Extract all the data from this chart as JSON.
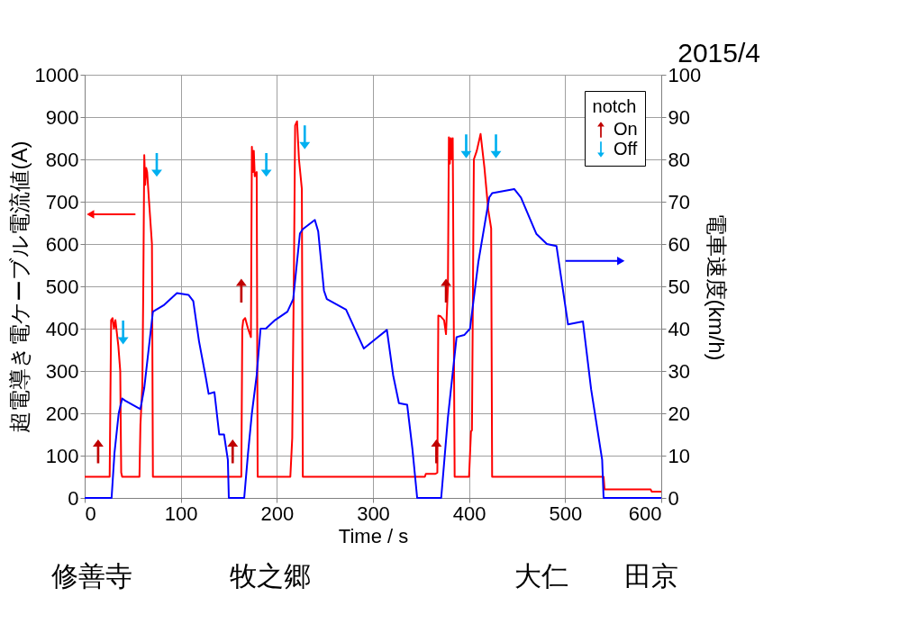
{
  "chart_data": {
    "type": "line",
    "xlabel": "Time / s",
    "ylabel": "超電導き電ケーブル電流値(A)",
    "y2label": "電車速度(km/h)",
    "legend_title": "notch",
    "xlim": [
      0,
      600
    ],
    "xticks": [
      0,
      100,
      200,
      300,
      400,
      500,
      600
    ],
    "ylim": [
      0,
      1000
    ],
    "yticks": [
      0,
      100,
      200,
      300,
      400,
      500,
      600,
      700,
      800,
      900,
      1000
    ],
    "y2lim": [
      0,
      100
    ],
    "y2ticks": [
      0,
      10,
      20,
      30,
      40,
      50,
      60,
      70,
      80,
      90,
      100
    ],
    "grid": true,
    "legend": "top right",
    "line_style": "solid",
    "series": [
      {
        "color": "#ff0000",
        "x": [
          0,
          26,
          27.5,
          29,
          30.5,
          32,
          35,
          37,
          38,
          39,
          57,
          58,
          60,
          61,
          62,
          63,
          64,
          65,
          67,
          70,
          71,
          72,
          161,
          163,
          164,
          165,
          167,
          170,
          173,
          174,
          175,
          176,
          177,
          179,
          180,
          184,
          214,
          216,
          218,
          219,
          221,
          223,
          226,
          227,
          228,
          354,
          355,
          365,
          367,
          368,
          370,
          374,
          376,
          378,
          379,
          380,
          381,
          382,
          383,
          385,
          388,
          400,
          402,
          403,
          405,
          408,
          412,
          416,
          420,
          423,
          424,
          540,
          541,
          589,
          590,
          600
        ],
        "values": [
          50,
          50,
          420,
          425,
          400,
          420,
          360,
          300,
          60,
          50,
          50,
          172,
          265,
          500,
          810,
          740,
          780,
          770,
          700,
          600,
          50,
          50,
          50,
          50,
          400,
          420,
          425,
          400,
          380,
          830,
          770,
          820,
          760,
          770,
          50,
          50,
          50,
          142,
          600,
          880,
          890,
          800,
          730,
          50,
          50,
          50,
          57,
          57,
          60,
          431,
          430,
          420,
          387,
          500,
          852,
          790,
          850,
          800,
          850,
          50,
          50,
          50,
          157,
          160,
          800,
          820,
          860,
          780,
          680,
          637,
          50,
          50,
          20,
          20,
          15,
          15
        ]
      },
      {
        "color": "#0000ff",
        "axis": "y2",
        "x": [
          0,
          28,
          31,
          35.4,
          39,
          42,
          50,
          58,
          62,
          67,
          71,
          82,
          96,
          108,
          113,
          119,
          126,
          129,
          135,
          140,
          145,
          149,
          150,
          166,
          170,
          174,
          179,
          183,
          188.5,
          198,
          211,
          217,
          224,
          227,
          239.5,
          243,
          249,
          252,
          272,
          283,
          290.5,
          305,
          314.5,
          321,
          327,
          335.6,
          341,
          346,
          371,
          378,
          387,
          395,
          401,
          409.7,
          421,
          424,
          447,
          454,
          470,
          481,
          491,
          503,
          518.5,
          527,
          538.5,
          540,
          600
        ],
        "values": [
          0,
          0,
          10.6,
          20,
          23.5,
          23,
          22,
          21,
          26,
          36,
          44,
          45.5,
          48.4,
          48,
          46.5,
          37,
          28.5,
          24.6,
          25,
          15,
          15,
          9,
          0,
          0,
          10.6,
          20,
          29,
          40,
          40,
          42,
          44,
          47,
          62.5,
          63.5,
          65.7,
          63,
          49,
          47,
          44.5,
          39,
          35.3,
          38,
          39.7,
          29,
          22.4,
          22,
          11.7,
          0,
          0,
          19,
          38,
          38.5,
          40,
          55.8,
          71,
          72,
          73,
          71,
          62.4,
          60,
          59.5,
          41,
          41.7,
          25.7,
          9,
          0,
          0
        ]
      },
      {
        "type": "scatter",
        "name": "On",
        "color": "#c00000",
        "x": [
          14,
          154,
          163,
          366,
          376
        ],
        "values": [
          110,
          110,
          490,
          110,
          490
        ]
      },
      {
        "type": "scatter",
        "name": "Off",
        "color": "#00b0f0",
        "x": [
          40,
          75,
          189,
          229,
          397,
          428
        ],
        "values": [
          391,
          787,
          787,
          852,
          831,
          831
        ]
      }
    ],
    "annotations": [
      "2015/4",
      "修善寺",
      "牧之郷",
      "大仁",
      "田京"
    ]
  }
}
